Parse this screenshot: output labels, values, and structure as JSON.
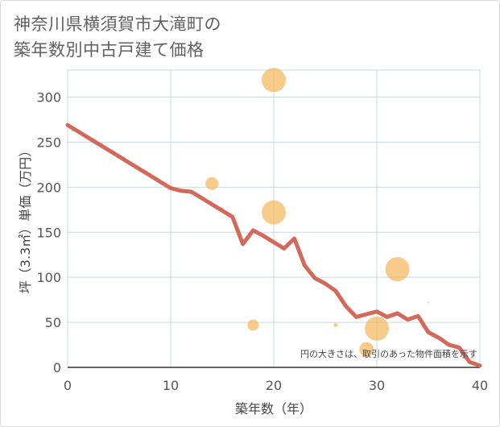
{
  "title_lines": [
    "神奈川県横須賀市大滝町の",
    "築年数別中古戸建て価格"
  ],
  "chart_data": {
    "type": "scatter",
    "xlabel": "築年数（年）",
    "ylabel": "坪（3.3㎡）単価（万円）",
    "xlim": [
      0,
      40
    ],
    "ylim": [
      0,
      330
    ],
    "xticks": [
      0,
      10,
      20,
      30,
      40
    ],
    "yticks": [
      0,
      50,
      100,
      150,
      200,
      250,
      300
    ],
    "grid": true,
    "annotation": "円の大きさは、取引のあった物件面積を示す",
    "colors": {
      "bubble": "#f4b961",
      "line": "#d2695a",
      "grid": "#c8d8e8",
      "axis": "#555555"
    },
    "bubbles": [
      {
        "x": 20,
        "y": 319,
        "size": 15
      },
      {
        "x": 14,
        "y": 204,
        "size": 8
      },
      {
        "x": 20,
        "y": 172,
        "size": 15
      },
      {
        "x": 32,
        "y": 109,
        "size": 15
      },
      {
        "x": 18,
        "y": 47,
        "size": 7
      },
      {
        "x": 26,
        "y": 47,
        "size": 2.5
      },
      {
        "x": 30,
        "y": 43,
        "size": 15
      },
      {
        "x": 29,
        "y": 20,
        "size": 9
      },
      {
        "x": 35,
        "y": 72,
        "size": 1
      }
    ],
    "trend": {
      "x": [
        0,
        1,
        2,
        3,
        4,
        5,
        6,
        7,
        8,
        9,
        10,
        11,
        12,
        13,
        14,
        15,
        16,
        17,
        18,
        19,
        20,
        21,
        22,
        23,
        24,
        25,
        26,
        27,
        28,
        29,
        30,
        31,
        32,
        33,
        34,
        35,
        36,
        37,
        38,
        39,
        40
      ],
      "y": [
        269,
        262,
        255,
        248,
        241,
        234,
        227,
        220,
        213,
        206,
        199,
        196,
        195,
        188,
        181,
        174,
        167,
        137,
        152,
        146,
        139,
        132,
        143,
        113,
        99,
        93,
        85,
        68,
        56,
        59,
        62,
        56,
        60,
        53,
        57,
        39,
        33,
        25,
        22,
        6,
        2
      ]
    }
  }
}
